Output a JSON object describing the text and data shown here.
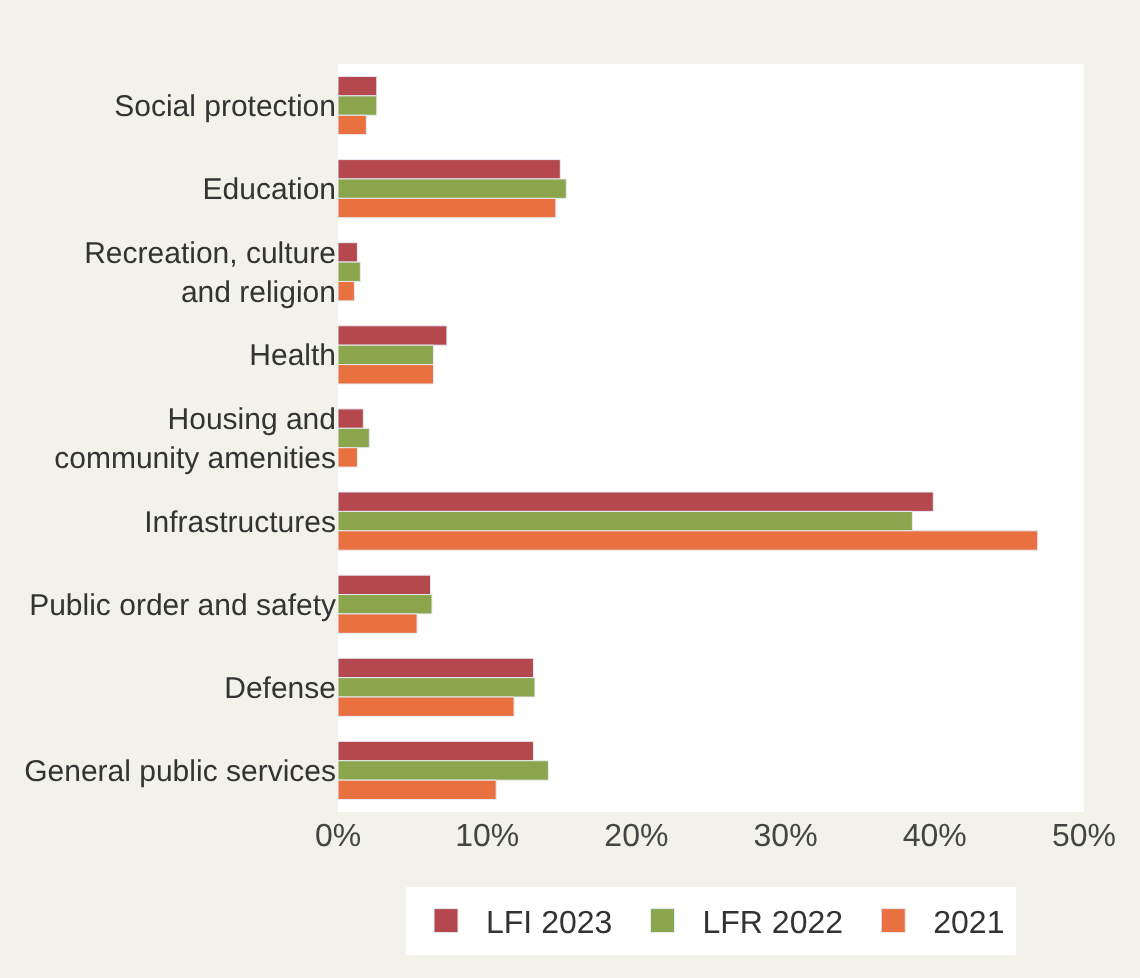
{
  "chart_data": {
    "type": "bar",
    "orientation": "horizontal",
    "categories": [
      "Social protection",
      "Education",
      "Recreation, culture\nand religion",
      "Health",
      "Housing and\ncommunity amenities",
      "Infrastructures",
      "Public order and safety",
      "Defense",
      "General public services"
    ],
    "series": [
      {
        "name": "LFI 2023",
        "color": "#b5474f",
        "values": [
          2.6,
          14.9,
          1.3,
          7.3,
          1.7,
          39.9,
          6.2,
          13.1,
          13.1
        ]
      },
      {
        "name": "LFR 2022",
        "color": "#8aa54b",
        "values": [
          2.6,
          15.3,
          1.5,
          6.4,
          2.1,
          38.5,
          6.3,
          13.2,
          14.1
        ]
      },
      {
        "name": "2021",
        "color": "#e9703f",
        "values": [
          1.9,
          14.6,
          1.1,
          6.4,
          1.3,
          46.9,
          5.3,
          11.8,
          10.6
        ]
      }
    ],
    "xlim": [
      0,
      50
    ],
    "xticks": [
      {
        "value": 0,
        "label": "0%"
      },
      {
        "value": 10,
        "label": "10%"
      },
      {
        "value": 20,
        "label": "20%"
      },
      {
        "value": 30,
        "label": "30%"
      },
      {
        "value": 40,
        "label": "40%"
      },
      {
        "value": 50,
        "label": "50%"
      }
    ],
    "legend": "bottom"
  }
}
